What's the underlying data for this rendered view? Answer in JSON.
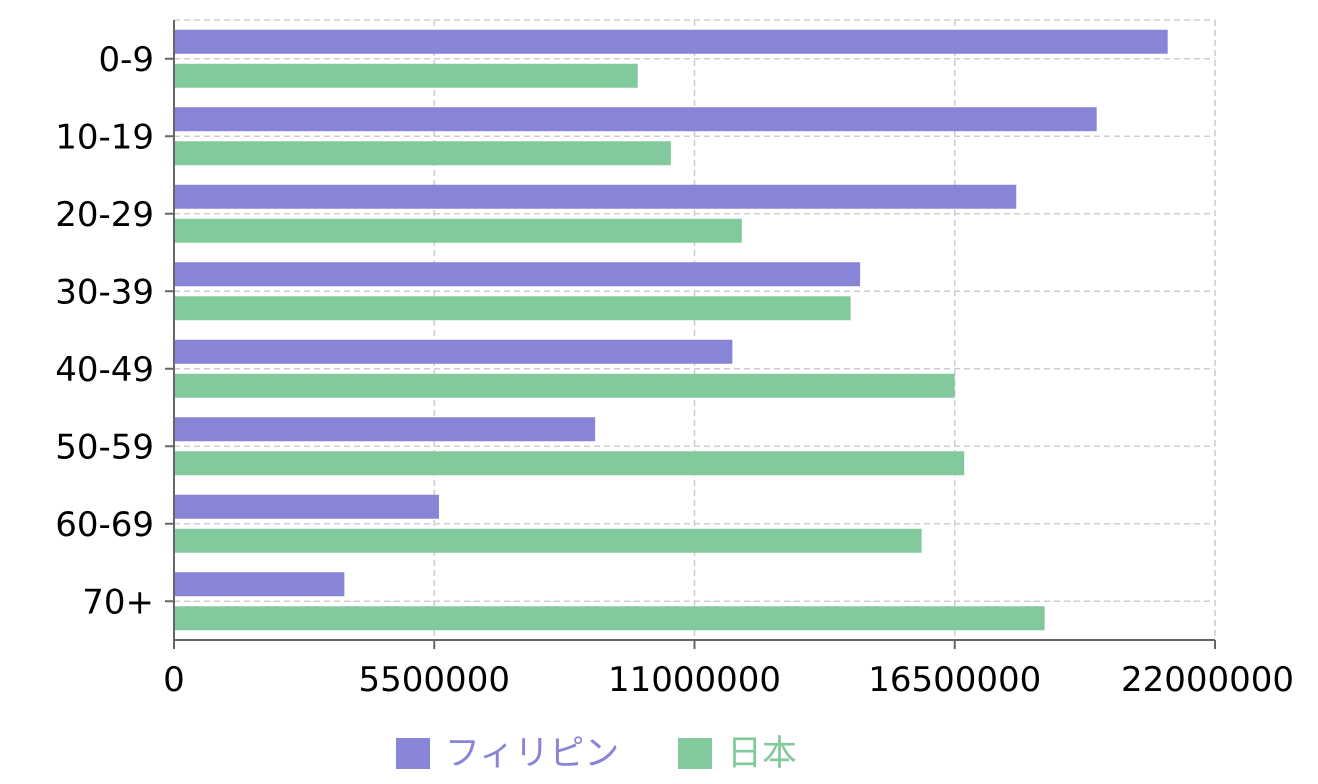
{
  "chart_data": {
    "type": "bar",
    "orientation": "horizontal",
    "categories": [
      "0-9",
      "10-19",
      "20-29",
      "30-39",
      "40-49",
      "50-59",
      "60-69",
      "70+"
    ],
    "series": [
      {
        "name": "フィリピン",
        "color": "#8884d8",
        "values": [
          21000000,
          19500000,
          17800000,
          14500000,
          11800000,
          8900000,
          5600000,
          3600000
        ]
      },
      {
        "name": "日本",
        "color": "#82ca9d",
        "values": [
          9800000,
          10500000,
          12000000,
          14300000,
          16500000,
          16700000,
          15800000,
          18400000
        ]
      }
    ],
    "xticks": [
      "0",
      "5500000",
      "11000000",
      "16500000",
      "22000000"
    ],
    "xlim": [
      0,
      22000000
    ],
    "grid": true,
    "legend_position": "bottom"
  }
}
